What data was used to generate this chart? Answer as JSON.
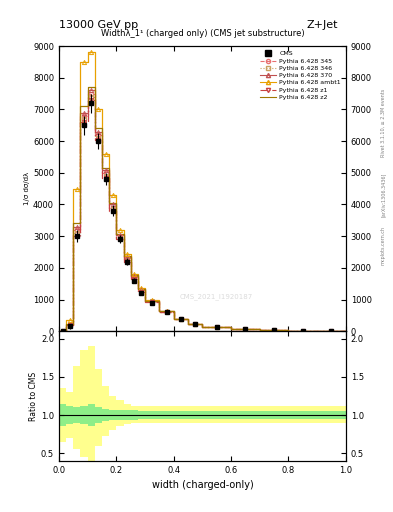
{
  "title_top": "13000 GeV pp",
  "title_right": "Z+Jet",
  "plot_title": "Widthλ_1¹ (charged only) (CMS jet substructure)",
  "xlabel": "width (charged-only)",
  "ylabel_main": "1/σ dσ/dλ",
  "ylabel_ratio": "Ratio to CMS",
  "watermark": "CMS_2021_I1920187",
  "right_label_top": "Rivet 3.1.10, ≥ 2.3M events",
  "right_label_bot": "[arXiv:1306.3436]",
  "right_label_site": "mcplots.cern.ch",
  "x_bins": [
    0.0,
    0.025,
    0.05,
    0.075,
    0.1,
    0.125,
    0.15,
    0.175,
    0.2,
    0.225,
    0.25,
    0.275,
    0.3,
    0.35,
    0.4,
    0.45,
    0.5,
    0.6,
    0.7,
    0.8,
    0.9,
    1.0
  ],
  "cms_data": [
    0,
    150,
    3000,
    6500,
    7200,
    6000,
    4800,
    3800,
    2900,
    2200,
    1600,
    1200,
    900,
    600,
    380,
    230,
    140,
    70,
    30,
    10,
    5
  ],
  "cms_errors": [
    0,
    80,
    200,
    300,
    300,
    250,
    200,
    170,
    130,
    100,
    80,
    60,
    50,
    35,
    25,
    18,
    12,
    8,
    5,
    3,
    2
  ],
  "py345_data": [
    0,
    200,
    3200,
    6800,
    7500,
    6200,
    5000,
    3900,
    3000,
    2300,
    1700,
    1300,
    950,
    620,
    390,
    235,
    145,
    72,
    32,
    11,
    5
  ],
  "py346_data": [
    0,
    190,
    3100,
    6700,
    7400,
    6100,
    4900,
    3850,
    2950,
    2250,
    1680,
    1280,
    940,
    615,
    385,
    232,
    143,
    71,
    31,
    11,
    5
  ],
  "py370_data": [
    0,
    210,
    3300,
    6900,
    7600,
    6300,
    5100,
    4000,
    3050,
    2350,
    1750,
    1320,
    960,
    630,
    395,
    238,
    147,
    73,
    33,
    12,
    5
  ],
  "py_ambt1_data": [
    0,
    350,
    4500,
    8500,
    8800,
    7000,
    5600,
    4300,
    3200,
    2450,
    1800,
    1350,
    980,
    640,
    400,
    240,
    148,
    74,
    33,
    12,
    5
  ],
  "py_z1_data": [
    0,
    180,
    3000,
    6600,
    7300,
    6050,
    4850,
    3800,
    2900,
    2200,
    1650,
    1250,
    920,
    608,
    382,
    230,
    142,
    71,
    31,
    11,
    5
  ],
  "py_z2_data": [
    0,
    220,
    3400,
    7100,
    7700,
    6400,
    5150,
    4050,
    3080,
    2370,
    1760,
    1330,
    965,
    632,
    397,
    240,
    148,
    74,
    33,
    12,
    5
  ],
  "ratio_green_lo": [
    0.85,
    0.88,
    0.9,
    0.88,
    0.85,
    0.9,
    0.92,
    0.93,
    0.93,
    0.94,
    0.94,
    0.95,
    0.95,
    0.95,
    0.95,
    0.95,
    0.95,
    0.95,
    0.95,
    0.95,
    0.95
  ],
  "ratio_green_hi": [
    1.15,
    1.12,
    1.1,
    1.12,
    1.15,
    1.1,
    1.08,
    1.07,
    1.07,
    1.06,
    1.06,
    1.05,
    1.05,
    1.05,
    1.05,
    1.05,
    1.05,
    1.05,
    1.05,
    1.05,
    1.05
  ],
  "ratio_yellow_lo": [
    0.65,
    0.7,
    0.55,
    0.45,
    0.4,
    0.6,
    0.72,
    0.8,
    0.85,
    0.88,
    0.9,
    0.9,
    0.9,
    0.9,
    0.9,
    0.9,
    0.9,
    0.9,
    0.9,
    0.9,
    0.9
  ],
  "ratio_yellow_hi": [
    1.35,
    1.3,
    1.65,
    1.85,
    1.9,
    1.6,
    1.38,
    1.25,
    1.2,
    1.15,
    1.12,
    1.12,
    1.12,
    1.12,
    1.12,
    1.12,
    1.12,
    1.12,
    1.12,
    1.12,
    1.12
  ],
  "colors": {
    "cms": "#000000",
    "py345": "#e87070",
    "py346": "#c8a060",
    "py370": "#c05050",
    "py_ambt1": "#e8a000",
    "py_z1": "#c84040",
    "py_z2": "#a07800"
  },
  "ylim_main": [
    0,
    9000
  ],
  "ylim_ratio": [
    0.4,
    2.1
  ],
  "yticks_main": [
    0,
    1000,
    2000,
    3000,
    4000,
    5000,
    6000,
    7000,
    8000,
    9000
  ],
  "yticks_ratio": [
    0.5,
    1.0,
    1.5,
    2.0
  ],
  "legend_labels": [
    "CMS",
    "Pythia 6.428 345",
    "Pythia 6.428 346",
    "Pythia 6.428 370",
    "Pythia 6.428 ambt1",
    "Pythia 6.428 z1",
    "Pythia 6.428 z2"
  ]
}
